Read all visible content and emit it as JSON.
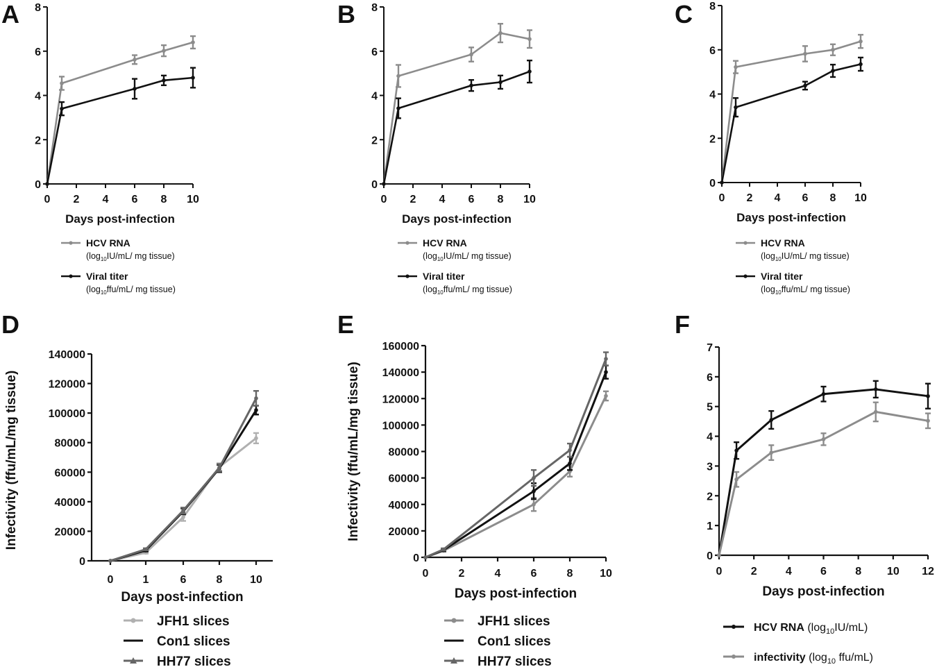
{
  "chart_data": [
    {
      "id": "A",
      "panel_label": "A",
      "type": "line",
      "xlabel": "Days post-infection",
      "ylabel": "",
      "xlim": [
        0,
        10
      ],
      "ylim": [
        0,
        8
      ],
      "xticks": [
        0,
        2,
        4,
        6,
        8,
        10
      ],
      "yticks": [
        0,
        2,
        4,
        6,
        8
      ],
      "series": [
        {
          "legend_main": "HCV RNA",
          "legend_pre": "(log",
          "legend_sub": "10",
          "legend_post": "IU/mL/ mg tissue)",
          "color": "#8c8c8c",
          "x": [
            0,
            1,
            6,
            8,
            10
          ],
          "values": [
            0,
            4.55,
            5.62,
            6.02,
            6.4
          ],
          "err": [
            0,
            0.3,
            0.2,
            0.25,
            0.28
          ]
        },
        {
          "legend_main": "Viral titer",
          "legend_pre": "(log",
          "legend_sub": "10",
          "legend_post": "ffu/mL/ mg tissue)",
          "color": "#111111",
          "x": [
            0,
            1,
            6,
            8,
            10
          ],
          "values": [
            0,
            3.4,
            4.3,
            4.68,
            4.8
          ],
          "err": [
            0,
            0.3,
            0.45,
            0.22,
            0.45
          ]
        }
      ]
    },
    {
      "id": "B",
      "panel_label": "B",
      "type": "line",
      "xlabel": "Days post-infection",
      "ylabel": "",
      "xlim": [
        0,
        10
      ],
      "ylim": [
        0,
        8
      ],
      "xticks": [
        0,
        2,
        4,
        6,
        8,
        10
      ],
      "yticks": [
        0,
        2,
        4,
        6,
        8
      ],
      "series": [
        {
          "legend_main": "HCV RNA",
          "legend_pre": "(log",
          "legend_sub": "10",
          "legend_post": "IU/mL/ mg tissue)",
          "color": "#8c8c8c",
          "x": [
            0,
            1,
            6,
            8,
            10
          ],
          "values": [
            0,
            4.88,
            5.85,
            6.82,
            6.55
          ],
          "err": [
            0,
            0.5,
            0.32,
            0.42,
            0.4
          ]
        },
        {
          "legend_main": "Viral titer",
          "legend_pre": "(log",
          "legend_sub": "10",
          "legend_post": "ffu/mL/ mg tissue)",
          "color": "#111111",
          "x": [
            0,
            1,
            6,
            8,
            10
          ],
          "values": [
            0,
            3.42,
            4.45,
            4.6,
            5.08
          ],
          "err": [
            0,
            0.45,
            0.25,
            0.3,
            0.5
          ]
        }
      ]
    },
    {
      "id": "C",
      "panel_label": "C",
      "type": "line",
      "xlabel": "Days post-infection",
      "ylabel": "",
      "xlim": [
        0,
        10
      ],
      "ylim": [
        0,
        8
      ],
      "xticks": [
        0,
        2,
        4,
        6,
        8,
        10
      ],
      "yticks": [
        0,
        2,
        4,
        6,
        8
      ],
      "series": [
        {
          "legend_main": "HCV RNA",
          "legend_pre": "(log",
          "legend_sub": "10",
          "legend_post": "IU/mL/ mg tissue)",
          "color": "#8c8c8c",
          "x": [
            0,
            1,
            6,
            8,
            10
          ],
          "values": [
            0,
            5.22,
            5.82,
            6.0,
            6.38
          ],
          "err": [
            0,
            0.28,
            0.35,
            0.25,
            0.3
          ]
        },
        {
          "legend_main": "Viral titer",
          "legend_pre": "(log",
          "legend_sub": "10",
          "legend_post": "ffu/mL/ mg tissue)",
          "color": "#111111",
          "x": [
            0,
            1,
            6,
            8,
            10
          ],
          "values": [
            0,
            3.4,
            4.38,
            5.05,
            5.35
          ],
          "err": [
            0,
            0.42,
            0.18,
            0.28,
            0.3
          ]
        }
      ]
    },
    {
      "id": "D",
      "panel_label": "D",
      "type": "line",
      "xlabel": "Days post-infection",
      "ylabel": "Infectivity (ffu/mL/mg tissue)",
      "categories": [
        "0",
        "1",
        "6",
        "8",
        "10"
      ],
      "ylim": [
        0,
        140000
      ],
      "yticks": [
        0,
        20000,
        40000,
        60000,
        80000,
        100000,
        120000,
        140000
      ],
      "series": [
        {
          "name": "JFH1 slices",
          "color": "#b0b0b0",
          "values": [
            0,
            5500,
            29500,
            63500,
            83000
          ],
          "err": [
            0,
            600,
            2500,
            2500,
            3500
          ]
        },
        {
          "name": "Con1 slices",
          "color": "#111111",
          "values": [
            0,
            7000,
            33500,
            62500,
            102000
          ],
          "err": [
            0,
            700,
            2000,
            2500,
            3000
          ]
        },
        {
          "name": "HH77 slices",
          "color": "#666666",
          "values": [
            0,
            7800,
            34000,
            63000,
            110000
          ],
          "err": [
            0,
            700,
            2000,
            2500,
            5000
          ]
        }
      ]
    },
    {
      "id": "E",
      "panel_label": "E",
      "type": "line",
      "xlabel": "Days post-infection",
      "ylabel": "Infectivity (ffu/mL/mg tissue)",
      "xlim": [
        0,
        10
      ],
      "ylim": [
        0,
        160000
      ],
      "xticks": [
        0,
        2,
        4,
        6,
        8,
        10
      ],
      "yticks": [
        0,
        20000,
        40000,
        60000,
        80000,
        100000,
        120000,
        140000,
        160000
      ],
      "series": [
        {
          "name": "JFH1 slices",
          "color": "#8c8c8c",
          "x": [
            0,
            1,
            6,
            8,
            10
          ],
          "values": [
            0,
            5000,
            40000,
            65000,
            122000
          ],
          "err": [
            0,
            800,
            5000,
            4000,
            3500
          ]
        },
        {
          "name": "Con1 slices",
          "color": "#111111",
          "x": [
            0,
            1,
            6,
            8,
            10
          ],
          "values": [
            0,
            5500,
            50000,
            71000,
            140000
          ],
          "err": [
            0,
            800,
            6000,
            5000,
            5000
          ]
        },
        {
          "name": "HH77 slices",
          "color": "#666666",
          "x": [
            0,
            1,
            6,
            8,
            10
          ],
          "values": [
            0,
            6000,
            60000,
            81000,
            150000
          ],
          "err": [
            0,
            800,
            6000,
            5000,
            5000
          ]
        }
      ]
    },
    {
      "id": "F",
      "panel_label": "F",
      "type": "line",
      "xlabel": "Days post-infection",
      "ylabel": "",
      "xlim": [
        0,
        12
      ],
      "ylim": [
        0,
        7
      ],
      "xticks": [
        0,
        2,
        4,
        6,
        8,
        10,
        12
      ],
      "yticks": [
        0,
        1,
        2,
        3,
        4,
        5,
        6,
        7
      ],
      "series": [
        {
          "legend_main": "HCV RNA",
          "legend_pre": " (log",
          "legend_sub": "10",
          "legend_post": "IU/mL)",
          "color": "#111111",
          "x": [
            0,
            1,
            3,
            6,
            9,
            12
          ],
          "values": [
            0,
            3.52,
            4.55,
            5.42,
            5.58,
            5.35
          ],
          "err": [
            0,
            0.28,
            0.3,
            0.25,
            0.28,
            0.42
          ]
        },
        {
          "legend_main": "infectivity",
          "legend_pre": " (log",
          "legend_sub": "10",
          "legend_post": " ffu/mL)",
          "color": "#8c8c8c",
          "x": [
            0,
            1,
            3,
            6,
            9,
            12
          ],
          "values": [
            0,
            2.55,
            3.45,
            3.9,
            4.82,
            4.52
          ],
          "err": [
            0,
            0.25,
            0.25,
            0.2,
            0.32,
            0.25
          ]
        }
      ]
    }
  ]
}
